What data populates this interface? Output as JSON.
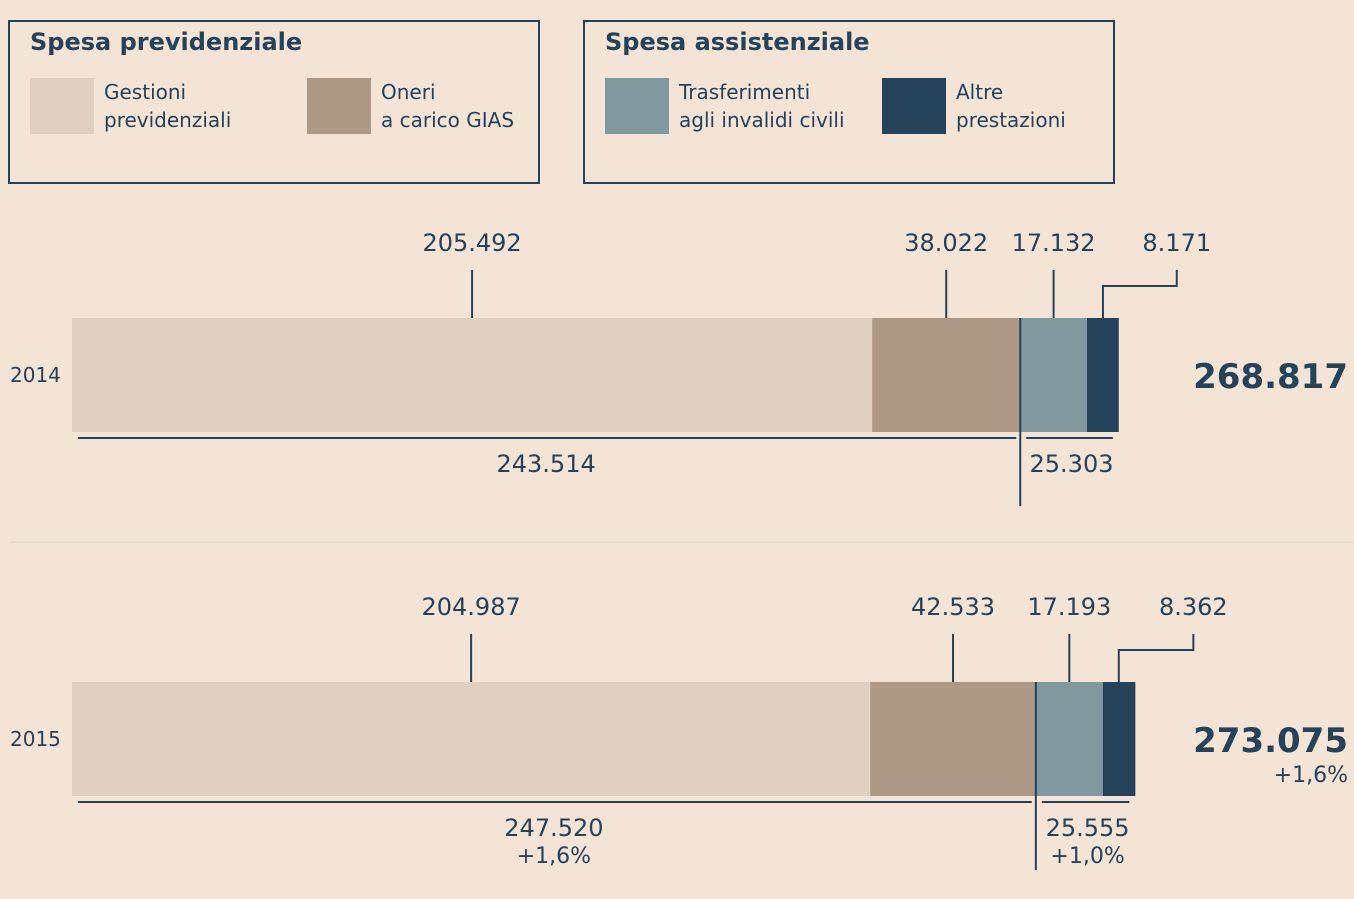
{
  "legend": {
    "groups": [
      {
        "title": "Spesa previdenziale",
        "items": [
          {
            "label": "Gestioni\nprevidenziali",
            "color": "#e0d0c1"
          },
          {
            "label": "Oneri\na carico GIAS",
            "color": "#ad9886"
          }
        ]
      },
      {
        "title": "Spesa assistenziale",
        "items": [
          {
            "label": "Trasferimenti\nagli invalidi civili",
            "color": "#80989e"
          },
          {
            "label": "Altre\nprestazioni",
            "color": "#24425a"
          }
        ]
      }
    ]
  },
  "chart_data": {
    "type": "bar",
    "orientation": "horizontal",
    "stacked": true,
    "categories": [
      "2014",
      "2015"
    ],
    "series": [
      {
        "name": "Gestioni previdenziali",
        "values": [
          205492,
          204987
        ],
        "labels": [
          "205.492",
          "204.987"
        ]
      },
      {
        "name": "Oneri a carico GIAS",
        "values": [
          38022,
          42533
        ],
        "labels": [
          "38.022",
          "42.533"
        ]
      },
      {
        "name": "Trasferimenti agli invalidi civili",
        "values": [
          17132,
          17193
        ],
        "labels": [
          "17.132",
          "17.193"
        ]
      },
      {
        "name": "Altre prestazioni",
        "values": [
          8171,
          8362
        ],
        "labels": [
          "8.171",
          "8.362"
        ]
      }
    ],
    "group_totals": {
      "previdenziale": {
        "values": [
          243514,
          247520
        ],
        "labels": [
          "243.514",
          "247.520"
        ],
        "changes": [
          "",
          "+1,6%"
        ]
      },
      "assistenziale": {
        "values": [
          25303,
          25555
        ],
        "labels": [
          "25.303",
          "25.555"
        ],
        "changes": [
          "",
          "+1,0%"
        ]
      }
    },
    "totals": {
      "values": [
        268817,
        273075
      ],
      "labels": [
        "268.817",
        "273.075"
      ],
      "changes": [
        "",
        "+1,6%"
      ]
    }
  }
}
